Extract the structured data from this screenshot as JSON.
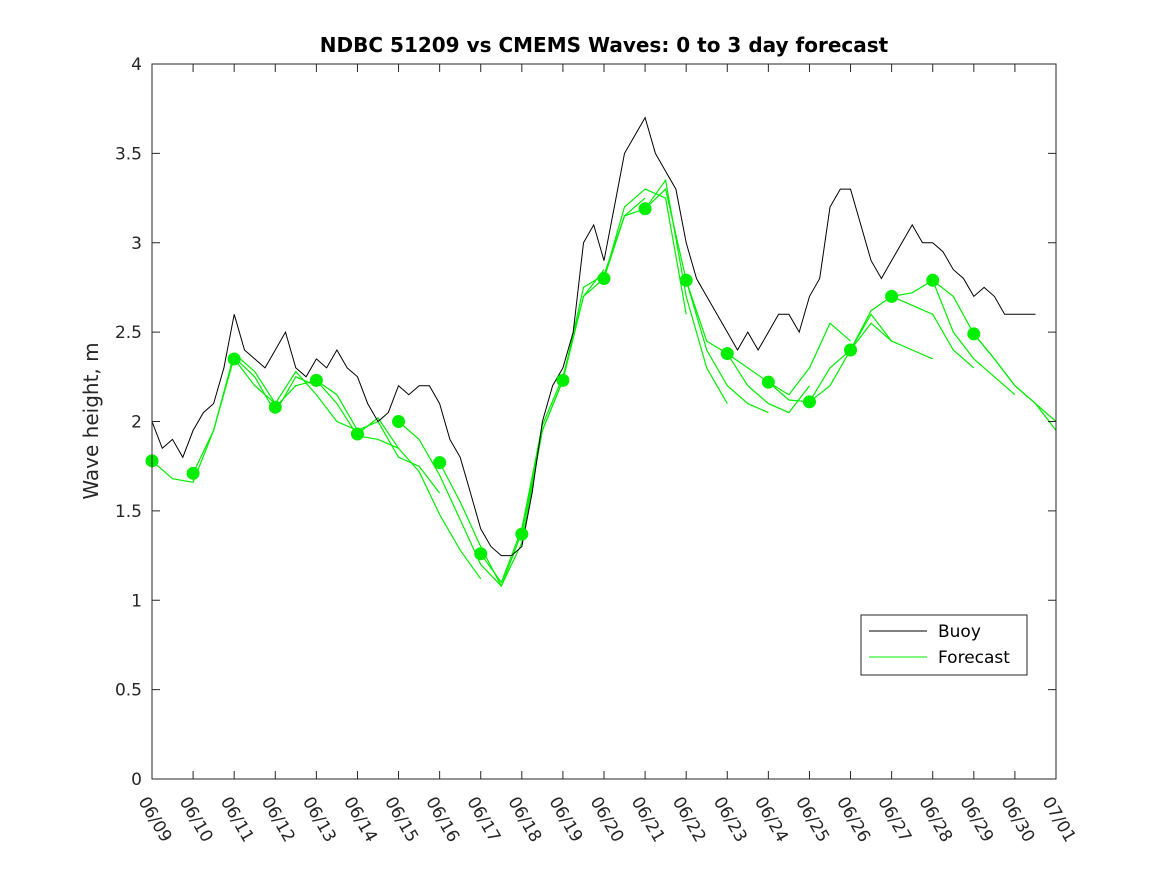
{
  "chart_data": {
    "type": "line",
    "title": "NDBC 51209 vs CMEMS Waves: 0 to 3 day forecast",
    "xlabel": "",
    "ylabel": "Wave height, m",
    "ylim": [
      0,
      4
    ],
    "yticks": [
      "0",
      "0.5",
      "1",
      "1.5",
      "2",
      "2.5",
      "3",
      "3.5",
      "4"
    ],
    "xticks": [
      "06/09",
      "06/10",
      "06/11",
      "06/12",
      "06/13",
      "06/14",
      "06/15",
      "06/16",
      "06/17",
      "06/18",
      "06/19",
      "06/20",
      "06/21",
      "06/22",
      "06/23",
      "06/24",
      "06/25",
      "06/26",
      "06/27",
      "06/28",
      "06/29",
      "06/30",
      "07/01"
    ],
    "xlim_days": [
      0,
      22
    ],
    "grid": false,
    "legend_position": "bottom-right",
    "legend": [
      "Buoy",
      "Forecast"
    ],
    "colors": {
      "buoy": "#000000",
      "forecast": "#00ee00"
    },
    "series": [
      {
        "name": "Buoy",
        "style": "line",
        "x_days": [
          0,
          0.25,
          0.5,
          0.75,
          1,
          1.25,
          1.5,
          1.75,
          2,
          2.25,
          2.5,
          2.75,
          3,
          3.25,
          3.5,
          3.75,
          4,
          4.25,
          4.5,
          4.75,
          5,
          5.25,
          5.5,
          5.75,
          6,
          6.25,
          6.5,
          6.75,
          7,
          7.25,
          7.5,
          7.75,
          8,
          8.25,
          8.5,
          8.75,
          9,
          9.25,
          9.5,
          9.75,
          10,
          10.25,
          10.5,
          10.75,
          11,
          11.25,
          11.5,
          11.75,
          12,
          12.25,
          12.5,
          12.75,
          13,
          13.25,
          13.5,
          13.75,
          14,
          14.25,
          14.5,
          14.75,
          15,
          15.25,
          15.5,
          15.75,
          16,
          16.25,
          16.5,
          16.75,
          17,
          17.25,
          17.5,
          17.75,
          18,
          18.25,
          18.5,
          18.75,
          19,
          19.25,
          19.5,
          19.75,
          20,
          20.25,
          20.5,
          20.75,
          21,
          21.25,
          21.5
        ],
        "values": [
          2.0,
          1.85,
          1.9,
          1.8,
          1.95,
          2.05,
          2.1,
          2.3,
          2.6,
          2.4,
          2.35,
          2.3,
          2.4,
          2.5,
          2.3,
          2.25,
          2.35,
          2.3,
          2.4,
          2.3,
          2.25,
          2.1,
          2.0,
          2.05,
          2.2,
          2.15,
          2.2,
          2.2,
          2.1,
          1.9,
          1.8,
          1.6,
          1.4,
          1.3,
          1.25,
          1.25,
          1.3,
          1.6,
          2.0,
          2.2,
          2.3,
          2.5,
          3.0,
          3.1,
          2.9,
          3.2,
          3.5,
          3.6,
          3.7,
          3.5,
          3.4,
          3.3,
          3.0,
          2.8,
          2.7,
          2.6,
          2.5,
          2.4,
          2.5,
          2.4,
          2.5,
          2.6,
          2.6,
          2.5,
          2.7,
          2.8,
          3.2,
          3.3,
          3.3,
          3.1,
          2.9,
          2.8,
          2.9,
          3.0,
          3.1,
          3.0,
          3.0,
          2.95,
          2.85,
          2.8,
          2.7,
          2.75,
          2.7,
          2.6,
          2.6,
          2.6,
          2.6
        ]
      },
      {
        "name": "Forecast",
        "style": "line",
        "runs": [
          {
            "x_days": [
              0,
              0.5,
              1,
              1.5,
              2,
              2.5,
              3
            ],
            "values": [
              1.78,
              1.68,
              1.66,
              1.95,
              2.38,
              2.28,
              2.1
            ]
          },
          {
            "x_days": [
              1,
              1.5,
              2,
              2.5,
              3,
              3.5,
              4
            ],
            "values": [
              1.71,
              1.95,
              2.36,
              2.25,
              2.05,
              2.25,
              2.2
            ]
          },
          {
            "x_days": [
              2,
              2.5,
              3,
              3.5,
              4,
              4.5,
              5
            ],
            "values": [
              2.35,
              2.2,
              2.1,
              2.28,
              2.15,
              2.0,
              1.95
            ]
          },
          {
            "x_days": [
              3,
              3.5,
              4,
              4.5,
              5,
              5.5,
              6
            ],
            "values": [
              2.08,
              2.2,
              2.23,
              2.1,
              1.92,
              1.9,
              1.85
            ]
          },
          {
            "x_days": [
              4,
              4.5,
              5,
              5.5,
              6,
              6.5,
              7
            ],
            "values": [
              2.23,
              2.15,
              1.95,
              2.0,
              1.8,
              1.75,
              1.6
            ]
          },
          {
            "x_days": [
              5,
              5.5,
              6,
              6.5,
              7,
              7.5,
              8
            ],
            "values": [
              1.93,
              2.02,
              1.85,
              1.72,
              1.48,
              1.28,
              1.12
            ]
          },
          {
            "x_days": [
              6,
              6.5,
              7,
              7.5,
              8,
              8.5,
              9
            ],
            "values": [
              2.0,
              1.9,
              1.7,
              1.45,
              1.2,
              1.08,
              1.38
            ]
          },
          {
            "x_days": [
              7,
              7.5,
              8,
              8.5,
              9,
              9.5,
              10
            ],
            "values": [
              1.77,
              1.55,
              1.3,
              1.08,
              1.32,
              1.95,
              2.23
            ]
          },
          {
            "x_days": [
              8,
              8.5,
              9,
              9.5,
              10,
              10.5,
              11
            ],
            "values": [
              1.26,
              1.1,
              1.4,
              1.98,
              2.25,
              2.7,
              2.85
            ]
          },
          {
            "x_days": [
              9,
              9.5,
              10,
              10.5,
              11,
              11.5,
              12
            ],
            "values": [
              1.37,
              1.95,
              2.23,
              2.75,
              2.82,
              3.15,
              3.25
            ]
          },
          {
            "x_days": [
              10,
              10.5,
              11,
              11.5,
              12,
              12.5,
              13
            ],
            "values": [
              2.23,
              2.7,
              2.8,
              3.2,
              3.3,
              3.25,
              2.6
            ]
          },
          {
            "x_days": [
              11,
              11.5,
              12,
              12.5,
              13,
              13.5,
              14
            ],
            "values": [
              2.8,
              3.15,
              3.19,
              3.35,
              2.7,
              2.3,
              2.1
            ]
          },
          {
            "x_days": [
              12,
              12.5,
              13,
              13.5,
              14,
              14.5,
              15
            ],
            "values": [
              3.19,
              3.3,
              2.79,
              2.4,
              2.2,
              2.1,
              2.05
            ]
          },
          {
            "x_days": [
              13,
              13.5,
              14,
              14.5,
              15,
              15.5,
              16
            ],
            "values": [
              2.79,
              2.45,
              2.38,
              2.2,
              2.1,
              2.05,
              2.2
            ]
          },
          {
            "x_days": [
              14,
              14.5,
              15,
              15.5,
              16,
              16.5,
              17
            ],
            "values": [
              2.38,
              2.3,
              2.22,
              2.15,
              2.3,
              2.55,
              2.45
            ]
          },
          {
            "x_days": [
              15,
              15.5,
              16,
              16.5,
              17,
              17.5,
              18
            ],
            "values": [
              2.22,
              2.12,
              2.11,
              2.2,
              2.4,
              2.55,
              2.45
            ]
          },
          {
            "x_days": [
              16,
              16.5,
              17,
              17.5,
              18,
              18.5,
              19
            ],
            "values": [
              2.11,
              2.3,
              2.4,
              2.6,
              2.45,
              2.4,
              2.35
            ]
          },
          {
            "x_days": [
              17,
              17.5,
              18,
              18.5,
              19,
              19.5,
              20
            ],
            "values": [
              2.4,
              2.62,
              2.7,
              2.65,
              2.6,
              2.4,
              2.3
            ]
          },
          {
            "x_days": [
              18,
              18.5,
              19,
              19.5,
              20,
              20.5,
              21
            ],
            "values": [
              2.7,
              2.72,
              2.79,
              2.5,
              2.35,
              2.25,
              2.15
            ]
          },
          {
            "x_days": [
              19,
              19.5,
              20,
              20.5,
              21,
              21.5,
              22
            ],
            "values": [
              2.79,
              2.7,
              2.49,
              2.35,
              2.2,
              2.1,
              1.95
            ]
          },
          {
            "x_days": [
              20,
              20.5,
              21,
              21.5,
              22
            ],
            "values": [
              2.49,
              2.35,
              2.2,
              2.1,
              2.0
            ]
          }
        ]
      },
      {
        "name": "",
        "style": "markers",
        "x_days": [
          0,
          1,
          2,
          3,
          4,
          5,
          6,
          7,
          8,
          9,
          10,
          11,
          12,
          13,
          14,
          15,
          16,
          17,
          18,
          19,
          20
        ],
        "values": [
          1.78,
          1.71,
          2.35,
          2.08,
          2.23,
          1.93,
          2.0,
          1.77,
          1.26,
          1.37,
          2.23,
          2.8,
          3.19,
          2.79,
          2.38,
          2.22,
          2.11,
          2.4,
          2.7,
          2.79,
          2.49
        ]
      }
    ]
  }
}
